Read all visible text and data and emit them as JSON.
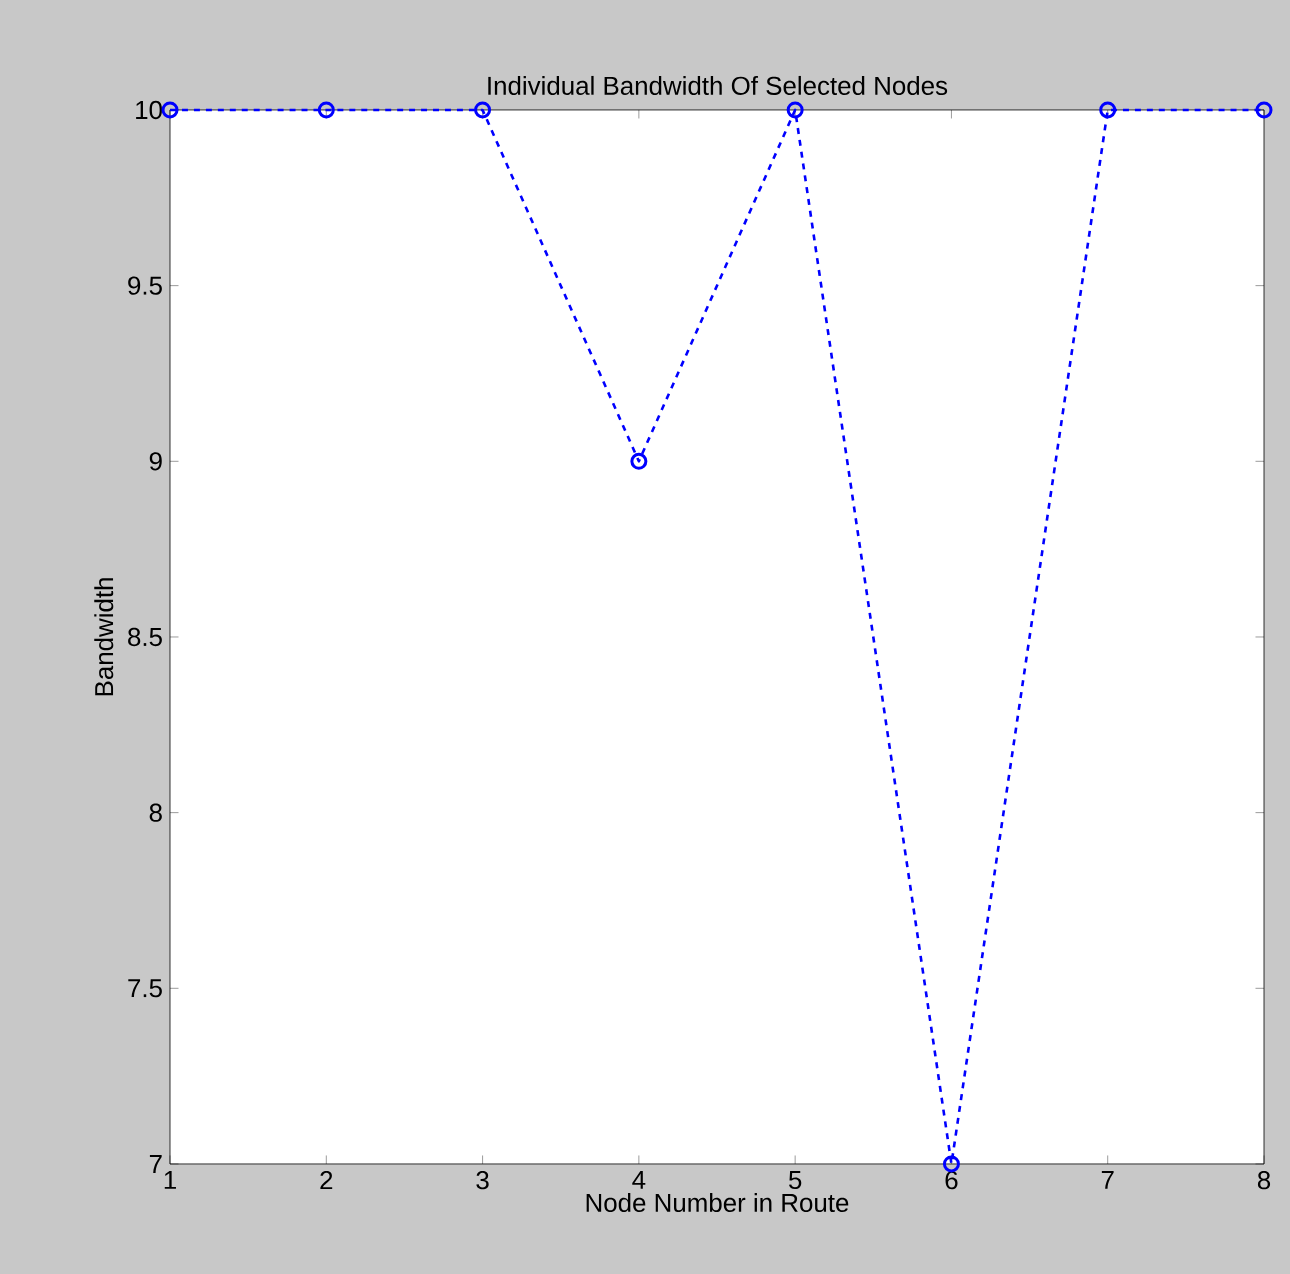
{
  "chart_data": {
    "type": "line",
    "title": "Individual Bandwidth Of Selected Nodes",
    "xlabel": "Node Number in Route",
    "ylabel": "Bandwidth",
    "x": [
      1,
      2,
      3,
      4,
      5,
      6,
      7,
      8
    ],
    "series": [
      {
        "color": "#0000ff",
        "values": [
          10,
          10,
          10,
          9,
          10,
          7,
          10,
          10
        ]
      }
    ],
    "xlim": [
      1,
      8
    ],
    "ylim": [
      7,
      10
    ],
    "xticks": [
      1,
      2,
      3,
      4,
      5,
      6,
      7,
      8
    ],
    "yticks": [
      7,
      7.5,
      8,
      8.5,
      9,
      9.5,
      10
    ],
    "marker": "circle",
    "line_style": "dashed"
  }
}
